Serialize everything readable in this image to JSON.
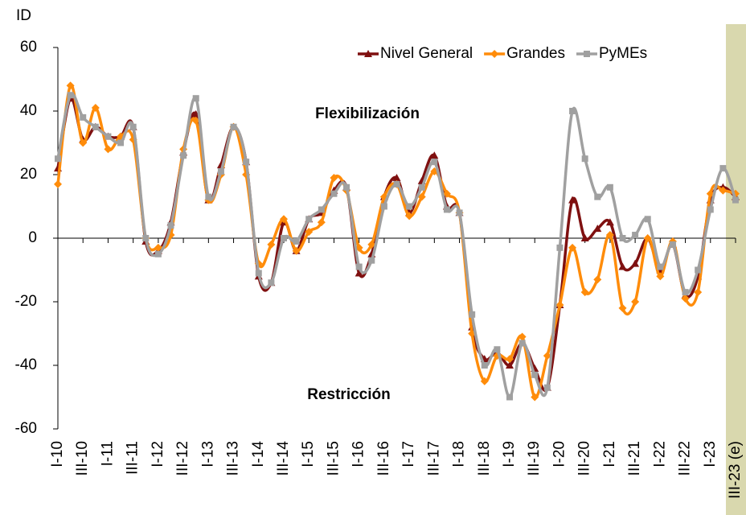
{
  "chart_data": {
    "type": "line",
    "y_label": "ID",
    "annotations": [
      "Flexibilización",
      "Restricción"
    ],
    "categories": [
      "I-10",
      null,
      "III-10",
      null,
      "I-11",
      null,
      "III-11",
      null,
      "I-12",
      null,
      "III-12",
      null,
      "I-13",
      null,
      "III-13",
      null,
      "I-14",
      null,
      "III-14",
      null,
      "I-15",
      null,
      "III-15",
      null,
      "I-16",
      null,
      "III-16",
      null,
      "I-17",
      null,
      "III-17",
      null,
      "I-18",
      null,
      "III-18",
      null,
      "I-19",
      null,
      "III-19",
      null,
      "I-20",
      null,
      "III-20",
      null,
      "I-21",
      null,
      "III-21",
      null,
      "I-22",
      null,
      "III-22",
      null,
      "I-23",
      null,
      "III-23 (e)"
    ],
    "series": [
      {
        "name": "Nivel General",
        "color": "#7f1010",
        "marker": "triangle",
        "values": [
          22,
          44,
          31,
          35,
          32,
          32,
          35,
          -1,
          -4,
          5,
          27,
          39,
          12,
          23,
          35,
          24,
          -12,
          -14,
          5,
          -4,
          6,
          8,
          15,
          16,
          -11,
          -5,
          13,
          19,
          8,
          18,
          26,
          10,
          8,
          -28,
          -38,
          -36,
          -40,
          -33,
          -41,
          -47,
          -21,
          12,
          0,
          3,
          5,
          -9,
          -8,
          0,
          -10,
          -2,
          -18,
          -12,
          12,
          16,
          13
        ]
      },
      {
        "name": "Grandes",
        "color": "#ff8c0a",
        "marker": "diamond",
        "values": [
          17,
          48,
          30,
          41,
          28,
          32,
          31,
          0,
          -3,
          1,
          28,
          37,
          12,
          20,
          35,
          20,
          -8,
          -2,
          6,
          -4,
          2,
          5,
          19,
          15,
          -3,
          -2,
          13,
          17,
          7,
          13,
          21,
          14,
          8,
          -30,
          -45,
          -37,
          -38,
          -31,
          -50,
          -37,
          -21,
          -3,
          -17,
          -13,
          1,
          -22,
          -20,
          0,
          -12,
          -1,
          -19,
          -17,
          14,
          15,
          14
        ]
      },
      {
        "name": "PyMEs",
        "color": "#a0a0a0",
        "marker": "square",
        "values": [
          25,
          45,
          38,
          35,
          32,
          30,
          35,
          0,
          -5,
          4,
          26,
          44,
          13,
          21,
          35,
          24,
          -11,
          -14,
          0,
          -1,
          6,
          9,
          14,
          16,
          -9,
          -7,
          10,
          17,
          10,
          16,
          24,
          9,
          8,
          -24,
          -40,
          -35,
          -50,
          -33,
          -43,
          -47,
          -3,
          40,
          25,
          13,
          16,
          0,
          1,
          6,
          -9,
          -2,
          -17,
          -10,
          9,
          22,
          12
        ]
      }
    ],
    "ylim": [
      -60,
      60
    ],
    "yticks": [
      -60,
      -40,
      -20,
      0,
      20,
      40,
      60
    ],
    "legend": "top-right"
  }
}
